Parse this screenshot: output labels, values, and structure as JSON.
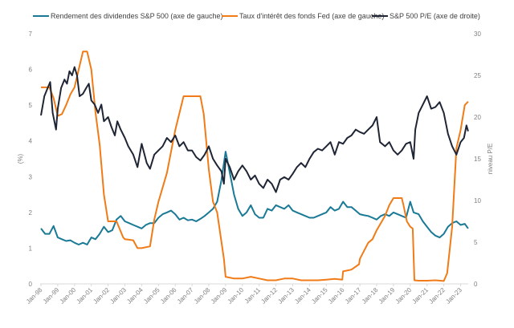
{
  "chart_data": {
    "type": "line",
    "title": "",
    "xlabel": "",
    "ylabel_left": "(%)",
    "ylabel_right": "niveau P/E",
    "ylim_left": [
      0,
      7
    ],
    "ylim_right": [
      0,
      30
    ],
    "yticks_left": [
      "0",
      "1",
      "2",
      "3",
      "4",
      "5",
      "6",
      "7"
    ],
    "yticks_right": [
      "0",
      "5",
      "10",
      "15",
      "20",
      "25",
      "30"
    ],
    "xlim": [
      1998.0,
      2023.5
    ],
    "xticks": [
      "Jan-98",
      "Jan-99",
      "Jan-00",
      "Jan-01",
      "Jan-02",
      "Jan-03",
      "Jan-04",
      "Jan-05",
      "Jan-06",
      "Jan-07",
      "Jan-08",
      "Jan-09",
      "Jan-10",
      "Jan-11",
      "Jan-12",
      "Jan-13",
      "Jan-14",
      "Jan-15",
      "Jan-16",
      "Jan-17",
      "Jan-18",
      "Jan-19",
      "Jan-20",
      "Jan-21",
      "Jan-22",
      "Jan-23"
    ],
    "grid": false,
    "legend_position": "top",
    "series": [
      {
        "name": "Rendement des dividendes S&P 500 (axe de gauche)",
        "axis": "left",
        "color": "#1a7a96",
        "x": [
          1998.0,
          1998.25,
          1998.5,
          1998.75,
          1999.0,
          1999.25,
          1999.5,
          1999.75,
          2000.0,
          2000.25,
          2000.5,
          2000.75,
          2001.0,
          2001.25,
          2001.5,
          2001.75,
          2002.0,
          2002.25,
          2002.5,
          2002.75,
          2003.0,
          2003.25,
          2003.5,
          2003.75,
          2004.0,
          2004.25,
          2004.5,
          2004.75,
          2005.0,
          2005.25,
          2005.5,
          2005.75,
          2006.0,
          2006.25,
          2006.5,
          2006.75,
          2007.0,
          2007.25,
          2007.5,
          2007.75,
          2008.0,
          2008.25,
          2008.5,
          2008.75,
          2009.0,
          2009.17,
          2009.5,
          2009.75,
          2010.0,
          2010.25,
          2010.5,
          2010.75,
          2011.0,
          2011.25,
          2011.5,
          2011.75,
          2012.0,
          2012.25,
          2012.5,
          2012.75,
          2013.0,
          2013.25,
          2013.5,
          2013.75,
          2014.0,
          2014.25,
          2014.5,
          2014.75,
          2015.0,
          2015.25,
          2015.5,
          2015.75,
          2016.0,
          2016.25,
          2016.5,
          2016.75,
          2017.0,
          2017.25,
          2017.5,
          2017.75,
          2018.0,
          2018.25,
          2018.5,
          2018.75,
          2019.0,
          2019.25,
          2019.5,
          2019.75,
          2020.0,
          2020.2,
          2020.5,
          2020.75,
          2021.0,
          2021.25,
          2021.5,
          2021.75,
          2022.0,
          2022.25,
          2022.5,
          2022.75,
          2023.0,
          2023.25,
          2023.45
        ],
        "values": [
          1.55,
          1.4,
          1.4,
          1.62,
          1.3,
          1.25,
          1.2,
          1.22,
          1.15,
          1.1,
          1.15,
          1.1,
          1.3,
          1.25,
          1.4,
          1.6,
          1.45,
          1.5,
          1.8,
          1.9,
          1.75,
          1.7,
          1.65,
          1.6,
          1.55,
          1.65,
          1.7,
          1.7,
          1.85,
          1.95,
          2.0,
          2.05,
          1.95,
          1.8,
          1.85,
          1.78,
          1.8,
          1.75,
          1.82,
          1.9,
          2.0,
          2.1,
          2.3,
          2.9,
          3.7,
          3.3,
          2.5,
          2.1,
          1.9,
          2.0,
          2.2,
          1.95,
          1.85,
          1.85,
          2.1,
          2.05,
          2.2,
          2.15,
          2.1,
          2.2,
          2.05,
          2.0,
          1.95,
          1.9,
          1.85,
          1.85,
          1.9,
          1.95,
          2.0,
          2.15,
          2.05,
          2.1,
          2.3,
          2.15,
          2.15,
          2.05,
          1.95,
          1.92,
          1.9,
          1.85,
          1.8,
          1.9,
          1.95,
          1.9,
          2.0,
          1.95,
          1.9,
          1.85,
          2.3,
          2.0,
          1.95,
          1.75,
          1.6,
          1.45,
          1.35,
          1.3,
          1.4,
          1.6,
          1.7,
          1.75,
          1.65,
          1.68,
          1.55
        ]
      },
      {
        "name": "Taux d'intérêt des fonds Fed (axe de gauche)",
        "axis": "left",
        "color": "#f07b17",
        "x": [
          1998.0,
          1998.5,
          1998.75,
          1999.0,
          1999.25,
          1999.5,
          1999.75,
          2000.0,
          2000.25,
          2000.5,
          2000.75,
          2001.0,
          2001.25,
          2001.5,
          2001.75,
          2002.0,
          2002.5,
          2002.9,
          2003.0,
          2003.5,
          2003.75,
          2004.0,
          2004.5,
          2004.75,
          2005.0,
          2005.5,
          2006.0,
          2006.5,
          2006.75,
          2007.0,
          2007.5,
          2007.7,
          2008.0,
          2008.25,
          2008.5,
          2008.9,
          2009.0,
          2009.5,
          2010.0,
          2010.5,
          2011.0,
          2011.5,
          2012.0,
          2012.5,
          2013.0,
          2013.5,
          2014.0,
          2014.5,
          2015.0,
          2015.5,
          2015.95,
          2016.0,
          2016.5,
          2016.95,
          2017.0,
          2017.5,
          2017.75,
          2018.0,
          2018.5,
          2018.75,
          2019.0,
          2019.5,
          2019.6,
          2019.8,
          2020.0,
          2020.15,
          2020.25,
          2020.5,
          2021.0,
          2021.5,
          2022.0,
          2022.2,
          2022.5,
          2022.75,
          2023.0,
          2023.25,
          2023.45
        ],
        "values": [
          5.5,
          5.5,
          5.2,
          4.7,
          4.75,
          5.0,
          5.3,
          5.5,
          6.0,
          6.5,
          6.5,
          6.0,
          4.8,
          3.9,
          2.5,
          1.75,
          1.75,
          1.3,
          1.25,
          1.22,
          1.0,
          1.0,
          1.05,
          1.8,
          2.3,
          3.1,
          4.3,
          5.25,
          5.25,
          5.25,
          5.25,
          4.75,
          3.2,
          2.3,
          2.0,
          0.7,
          0.2,
          0.15,
          0.15,
          0.2,
          0.15,
          0.1,
          0.1,
          0.15,
          0.15,
          0.1,
          0.1,
          0.1,
          0.12,
          0.14,
          0.12,
          0.35,
          0.4,
          0.55,
          0.7,
          1.15,
          1.25,
          1.5,
          1.9,
          2.2,
          2.4,
          2.4,
          2.2,
          1.75,
          1.6,
          1.55,
          0.1,
          0.09,
          0.09,
          0.1,
          0.08,
          0.3,
          1.6,
          3.8,
          4.3,
          5.0,
          5.1
        ]
      },
      {
        "name": "S&P 500 P/E (axe de droite)",
        "axis": "right",
        "color": "#1f2535",
        "x": [
          1998.0,
          1998.2,
          1998.4,
          1998.55,
          1998.7,
          1998.9,
          1999.0,
          1999.2,
          1999.4,
          1999.55,
          1999.7,
          1999.85,
          2000.0,
          2000.15,
          2000.3,
          2000.5,
          2000.7,
          2000.85,
          2001.0,
          2001.2,
          2001.4,
          2001.6,
          2001.75,
          2002.0,
          2002.2,
          2002.4,
          2002.55,
          2002.75,
          2003.0,
          2003.2,
          2003.5,
          2003.75,
          2004.0,
          2004.3,
          2004.5,
          2004.75,
          2005.0,
          2005.25,
          2005.5,
          2005.75,
          2006.0,
          2006.25,
          2006.5,
          2006.75,
          2007.0,
          2007.25,
          2007.5,
          2007.75,
          2008.0,
          2008.25,
          2008.5,
          2008.75,
          2008.9,
          2009.0,
          2009.25,
          2009.5,
          2009.75,
          2010.0,
          2010.25,
          2010.5,
          2010.75,
          2011.0,
          2011.25,
          2011.5,
          2011.75,
          2012.0,
          2012.25,
          2012.5,
          2012.75,
          2013.0,
          2013.25,
          2013.5,
          2013.75,
          2014.0,
          2014.25,
          2014.5,
          2014.75,
          2015.0,
          2015.25,
          2015.5,
          2015.75,
          2016.0,
          2016.25,
          2016.5,
          2016.75,
          2017.0,
          2017.25,
          2017.5,
          2017.75,
          2018.0,
          2018.2,
          2018.5,
          2018.75,
          2019.0,
          2019.25,
          2019.5,
          2019.75,
          2020.0,
          2020.2,
          2020.3,
          2020.5,
          2020.75,
          2021.0,
          2021.25,
          2021.5,
          2021.75,
          2022.0,
          2022.25,
          2022.5,
          2022.75,
          2023.0,
          2023.2,
          2023.35,
          2023.45
        ],
        "values": [
          20.2,
          22.5,
          23.5,
          24.2,
          20.5,
          18.5,
          21.0,
          23.5,
          24.5,
          24.0,
          25.5,
          25.0,
          26.0,
          25.0,
          22.5,
          22.8,
          23.5,
          24.0,
          22.0,
          21.5,
          20.5,
          21.5,
          19.5,
          20.0,
          18.8,
          17.8,
          19.5,
          18.5,
          17.5,
          16.5,
          15.5,
          14.0,
          16.8,
          14.5,
          13.8,
          15.5,
          16.0,
          16.5,
          17.5,
          17.0,
          17.8,
          16.5,
          17.0,
          16.0,
          16.0,
          15.2,
          14.8,
          15.5,
          16.5,
          15.0,
          14.2,
          13.5,
          12.0,
          15.0,
          14.0,
          12.5,
          13.5,
          14.2,
          13.5,
          12.5,
          13.0,
          12.0,
          11.5,
          12.5,
          12.0,
          11.0,
          12.5,
          12.8,
          12.5,
          13.2,
          14.0,
          14.5,
          14.0,
          15.0,
          15.8,
          16.2,
          16.0,
          16.5,
          17.0,
          15.5,
          17.0,
          16.8,
          17.5,
          17.8,
          18.5,
          18.2,
          18.0,
          18.5,
          19.0,
          20.0,
          17.0,
          16.5,
          17.0,
          16.0,
          15.5,
          16.0,
          16.8,
          17.0,
          15.0,
          18.5,
          20.5,
          21.5,
          22.5,
          21.0,
          21.2,
          21.8,
          20.5,
          18.0,
          16.5,
          15.5,
          17.0,
          17.5,
          19.0,
          18.3
        ]
      }
    ]
  }
}
